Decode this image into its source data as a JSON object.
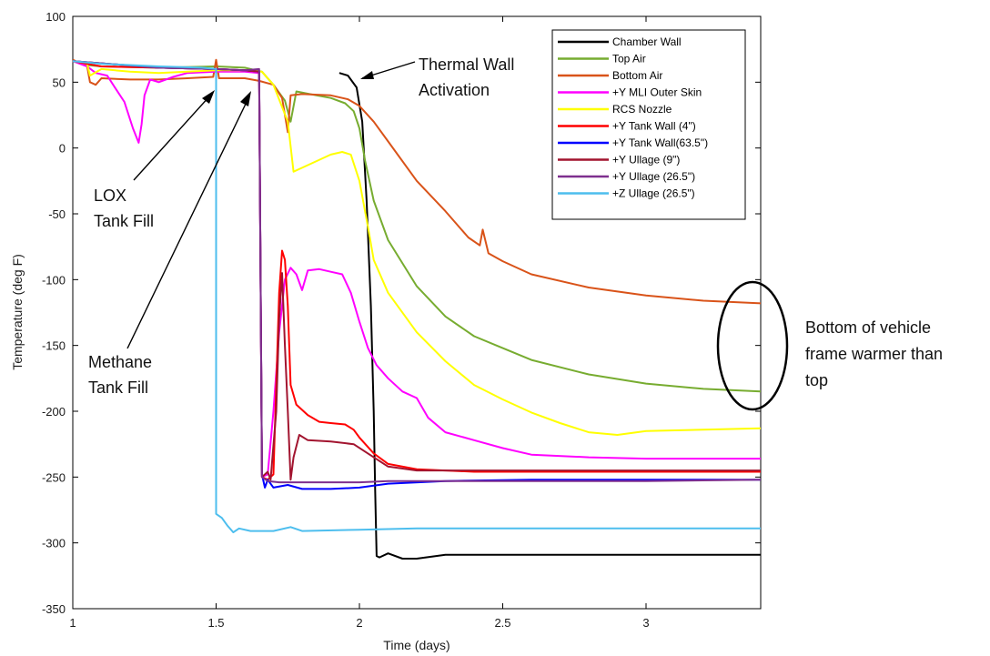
{
  "chart_data": {
    "type": "line",
    "title": "",
    "xlabel": "Time (days)",
    "ylabel": "Temperature (deg F)",
    "xlim": [
      1,
      3.4
    ],
    "ylim": [
      -350,
      100
    ],
    "xticks": [
      1,
      1.5,
      2,
      2.5,
      3
    ],
    "xtick_labels": [
      "1",
      "1.5",
      "2",
      "2.5",
      "3"
    ],
    "yticks": [
      100,
      50,
      0,
      -50,
      -100,
      -150,
      -200,
      -250,
      -300,
      -350
    ],
    "ytick_labels": [
      "100",
      "50",
      "0",
      "-50",
      "-100",
      "-150",
      "-200",
      "-250",
      "-300",
      "-350"
    ],
    "grid": false,
    "legend_position": "top-right",
    "series": [
      {
        "name": "Chamber Wall",
        "color": "#000000",
        "points": [
          [
            1.93,
            57
          ],
          [
            1.96,
            55
          ],
          [
            1.99,
            46
          ],
          [
            2.01,
            20
          ],
          [
            2.025,
            -40
          ],
          [
            2.04,
            -120
          ],
          [
            2.05,
            -200
          ],
          [
            2.055,
            -260
          ],
          [
            2.06,
            -310
          ],
          [
            2.07,
            -311
          ],
          [
            2.1,
            -308
          ],
          [
            2.15,
            -312
          ],
          [
            2.2,
            -312
          ],
          [
            2.3,
            -309
          ],
          [
            2.5,
            -309
          ],
          [
            3.0,
            -309
          ],
          [
            3.4,
            -309
          ]
        ]
      },
      {
        "name": "Top Air",
        "color": "#77ac30",
        "points": [
          [
            1.0,
            66
          ],
          [
            1.05,
            63
          ],
          [
            1.1,
            62
          ],
          [
            1.3,
            61
          ],
          [
            1.5,
            62
          ],
          [
            1.6,
            61
          ],
          [
            1.66,
            58
          ],
          [
            1.7,
            48
          ],
          [
            1.74,
            36
          ],
          [
            1.76,
            20
          ],
          [
            1.78,
            43
          ],
          [
            1.85,
            40
          ],
          [
            1.9,
            38
          ],
          [
            1.95,
            34
          ],
          [
            1.98,
            28
          ],
          [
            2.0,
            15
          ],
          [
            2.02,
            -10
          ],
          [
            2.05,
            -40
          ],
          [
            2.1,
            -70
          ],
          [
            2.2,
            -105
          ],
          [
            2.3,
            -128
          ],
          [
            2.4,
            -143
          ],
          [
            2.5,
            -152
          ],
          [
            2.6,
            -161
          ],
          [
            2.8,
            -172
          ],
          [
            3.0,
            -179
          ],
          [
            3.2,
            -183
          ],
          [
            3.4,
            -185
          ]
        ]
      },
      {
        "name": "Bottom Air",
        "color": "#d95319",
        "points": [
          [
            1.0,
            67
          ],
          [
            1.05,
            62
          ],
          [
            1.06,
            50
          ],
          [
            1.08,
            48
          ],
          [
            1.1,
            53
          ],
          [
            1.2,
            52
          ],
          [
            1.3,
            52
          ],
          [
            1.4,
            53
          ],
          [
            1.49,
            54
          ],
          [
            1.5,
            67
          ],
          [
            1.51,
            53
          ],
          [
            1.6,
            53
          ],
          [
            1.65,
            51
          ],
          [
            1.7,
            48
          ],
          [
            1.73,
            38
          ],
          [
            1.75,
            12
          ],
          [
            1.76,
            40
          ],
          [
            1.8,
            41
          ],
          [
            1.9,
            40
          ],
          [
            1.96,
            37
          ],
          [
            2.0,
            32
          ],
          [
            2.05,
            20
          ],
          [
            2.1,
            5
          ],
          [
            2.2,
            -25
          ],
          [
            2.3,
            -48
          ],
          [
            2.38,
            -68
          ],
          [
            2.42,
            -74
          ],
          [
            2.43,
            -62
          ],
          [
            2.45,
            -80
          ],
          [
            2.5,
            -86
          ],
          [
            2.6,
            -96
          ],
          [
            2.8,
            -106
          ],
          [
            3.0,
            -112
          ],
          [
            3.2,
            -116
          ],
          [
            3.4,
            -118
          ]
        ]
      },
      {
        "name": "+Y MLI Outer Skin",
        "color": "#ff00ff",
        "points": [
          [
            1.0,
            66
          ],
          [
            1.05,
            62
          ],
          [
            1.08,
            57
          ],
          [
            1.12,
            55
          ],
          [
            1.15,
            45
          ],
          [
            1.18,
            35
          ],
          [
            1.21,
            15
          ],
          [
            1.23,
            4
          ],
          [
            1.24,
            18
          ],
          [
            1.25,
            40
          ],
          [
            1.27,
            52
          ],
          [
            1.3,
            50
          ],
          [
            1.35,
            54
          ],
          [
            1.4,
            57
          ],
          [
            1.5,
            58
          ],
          [
            1.6,
            58
          ],
          [
            1.65,
            57
          ],
          [
            1.66,
            -250
          ],
          [
            1.68,
            -248
          ],
          [
            1.7,
            -200
          ],
          [
            1.72,
            -140
          ],
          [
            1.74,
            -100
          ],
          [
            1.76,
            -91
          ],
          [
            1.78,
            -96
          ],
          [
            1.8,
            -108
          ],
          [
            1.82,
            -93
          ],
          [
            1.86,
            -92
          ],
          [
            1.9,
            -94
          ],
          [
            1.94,
            -96
          ],
          [
            1.97,
            -110
          ],
          [
            2.0,
            -132
          ],
          [
            2.03,
            -152
          ],
          [
            2.06,
            -165
          ],
          [
            2.1,
            -175
          ],
          [
            2.15,
            -185
          ],
          [
            2.2,
            -190
          ],
          [
            2.24,
            -205
          ],
          [
            2.3,
            -216
          ],
          [
            2.4,
            -222
          ],
          [
            2.5,
            -228
          ],
          [
            2.6,
            -233
          ],
          [
            2.8,
            -235
          ],
          [
            3.0,
            -236
          ],
          [
            3.4,
            -236
          ]
        ]
      },
      {
        "name": "RCS Nozzle",
        "color": "#ffff00",
        "points": [
          [
            1.0,
            66
          ],
          [
            1.05,
            64
          ],
          [
            1.06,
            55
          ],
          [
            1.1,
            60
          ],
          [
            1.2,
            58
          ],
          [
            1.3,
            57
          ],
          [
            1.4,
            58
          ],
          [
            1.5,
            59
          ],
          [
            1.6,
            59
          ],
          [
            1.66,
            58
          ],
          [
            1.7,
            48
          ],
          [
            1.75,
            20
          ],
          [
            1.77,
            -18
          ],
          [
            1.8,
            -15
          ],
          [
            1.85,
            -10
          ],
          [
            1.9,
            -5
          ],
          [
            1.94,
            -3
          ],
          [
            1.97,
            -5
          ],
          [
            2.0,
            -25
          ],
          [
            2.03,
            -60
          ],
          [
            2.05,
            -85
          ],
          [
            2.1,
            -110
          ],
          [
            2.2,
            -140
          ],
          [
            2.3,
            -162
          ],
          [
            2.4,
            -180
          ],
          [
            2.5,
            -191
          ],
          [
            2.6,
            -201
          ],
          [
            2.7,
            -209
          ],
          [
            2.8,
            -216
          ],
          [
            2.9,
            -218
          ],
          [
            3.0,
            -215
          ],
          [
            3.2,
            -214
          ],
          [
            3.4,
            -213
          ]
        ]
      },
      {
        "name": "+Y Tank Wall (4\")",
        "color": "#ff0000",
        "points": [
          [
            1.0,
            66
          ],
          [
            1.1,
            62
          ],
          [
            1.3,
            61
          ],
          [
            1.5,
            60
          ],
          [
            1.6,
            59
          ],
          [
            1.65,
            58
          ],
          [
            1.66,
            -250
          ],
          [
            1.68,
            -252
          ],
          [
            1.7,
            -248
          ],
          [
            1.71,
            -180
          ],
          [
            1.72,
            -110
          ],
          [
            1.73,
            -78
          ],
          [
            1.74,
            -85
          ],
          [
            1.75,
            -120
          ],
          [
            1.76,
            -180
          ],
          [
            1.78,
            -195
          ],
          [
            1.82,
            -203
          ],
          [
            1.86,
            -208
          ],
          [
            1.9,
            -209
          ],
          [
            1.95,
            -210
          ],
          [
            1.98,
            -214
          ],
          [
            2.0,
            -220
          ],
          [
            2.05,
            -232
          ],
          [
            2.1,
            -240
          ],
          [
            2.2,
            -244
          ],
          [
            2.4,
            -246
          ],
          [
            3.0,
            -246
          ],
          [
            3.4,
            -246
          ]
        ]
      },
      {
        "name": "+Y Tank Wall(63.5\")",
        "color": "#0000ff",
        "points": [
          [
            1.0,
            66
          ],
          [
            1.3,
            61
          ],
          [
            1.5,
            60
          ],
          [
            1.6,
            59
          ],
          [
            1.65,
            58
          ],
          [
            1.66,
            -248
          ],
          [
            1.67,
            -258
          ],
          [
            1.68,
            -252
          ],
          [
            1.7,
            -258
          ],
          [
            1.75,
            -256
          ],
          [
            1.8,
            -259
          ],
          [
            1.9,
            -259
          ],
          [
            2.0,
            -258
          ],
          [
            2.1,
            -255
          ],
          [
            2.3,
            -253
          ],
          [
            2.6,
            -252
          ],
          [
            3.0,
            -252
          ],
          [
            3.4,
            -252
          ]
        ]
      },
      {
        "name": "+Y Ullage (9\")",
        "color": "#a2142f",
        "points": [
          [
            1.0,
            66
          ],
          [
            1.3,
            61
          ],
          [
            1.5,
            60
          ],
          [
            1.6,
            59
          ],
          [
            1.65,
            58
          ],
          [
            1.66,
            -250
          ],
          [
            1.68,
            -246
          ],
          [
            1.69,
            -252
          ],
          [
            1.71,
            -200
          ],
          [
            1.72,
            -130
          ],
          [
            1.73,
            -95
          ],
          [
            1.74,
            -150
          ],
          [
            1.75,
            -200
          ],
          [
            1.76,
            -252
          ],
          [
            1.77,
            -235
          ],
          [
            1.79,
            -218
          ],
          [
            1.82,
            -222
          ],
          [
            1.9,
            -223
          ],
          [
            1.98,
            -225
          ],
          [
            2.05,
            -235
          ],
          [
            2.1,
            -242
          ],
          [
            2.2,
            -245
          ],
          [
            2.5,
            -245
          ],
          [
            3.0,
            -245
          ],
          [
            3.4,
            -245
          ]
        ]
      },
      {
        "name": "+Y Ullage (26.5\")",
        "color": "#7e2f8e",
        "points": [
          [
            1.0,
            66
          ],
          [
            1.3,
            61
          ],
          [
            1.5,
            60
          ],
          [
            1.6,
            59
          ],
          [
            1.65,
            60
          ],
          [
            1.66,
            -250
          ],
          [
            1.68,
            -253
          ],
          [
            1.72,
            -254
          ],
          [
            1.8,
            -254
          ],
          [
            1.9,
            -254
          ],
          [
            2.0,
            -254
          ],
          [
            2.1,
            -253
          ],
          [
            2.5,
            -253
          ],
          [
            3.0,
            -253
          ],
          [
            3.4,
            -252
          ]
        ]
      },
      {
        "name": "+Z Ullage (26.5\")",
        "color": "#4dbeee",
        "points": [
          [
            1.0,
            66
          ],
          [
            1.1,
            64
          ],
          [
            1.3,
            62
          ],
          [
            1.45,
            61
          ],
          [
            1.5,
            60
          ],
          [
            1.5,
            -278
          ],
          [
            1.52,
            -281
          ],
          [
            1.54,
            -287
          ],
          [
            1.56,
            -292
          ],
          [
            1.58,
            -289
          ],
          [
            1.62,
            -291
          ],
          [
            1.7,
            -291
          ],
          [
            1.76,
            -288
          ],
          [
            1.8,
            -291
          ],
          [
            2.0,
            -290
          ],
          [
            2.2,
            -289
          ],
          [
            2.6,
            -289
          ],
          [
            3.0,
            -289
          ],
          [
            3.4,
            -289
          ]
        ]
      }
    ],
    "annotations": [
      {
        "text": "Thermal Wall",
        "subtext": "Activation",
        "x": 2.2,
        "y": 60,
        "arrow_to": [
          1.99,
          56
        ]
      },
      {
        "text": "LOX",
        "subtext": "Tank Fill",
        "x": 1.13,
        "y": -45,
        "arrow_to": [
          1.48,
          55
        ]
      },
      {
        "text": "Methane",
        "subtext": "Tank Fill",
        "x": 1.07,
        "y": -175,
        "arrow_to": [
          1.61,
          56
        ]
      },
      {
        "text": "Bottom of vehicle",
        "subtext": "frame warmer than",
        "subtext2": "top",
        "x": 3.5,
        "y": -140
      }
    ]
  }
}
